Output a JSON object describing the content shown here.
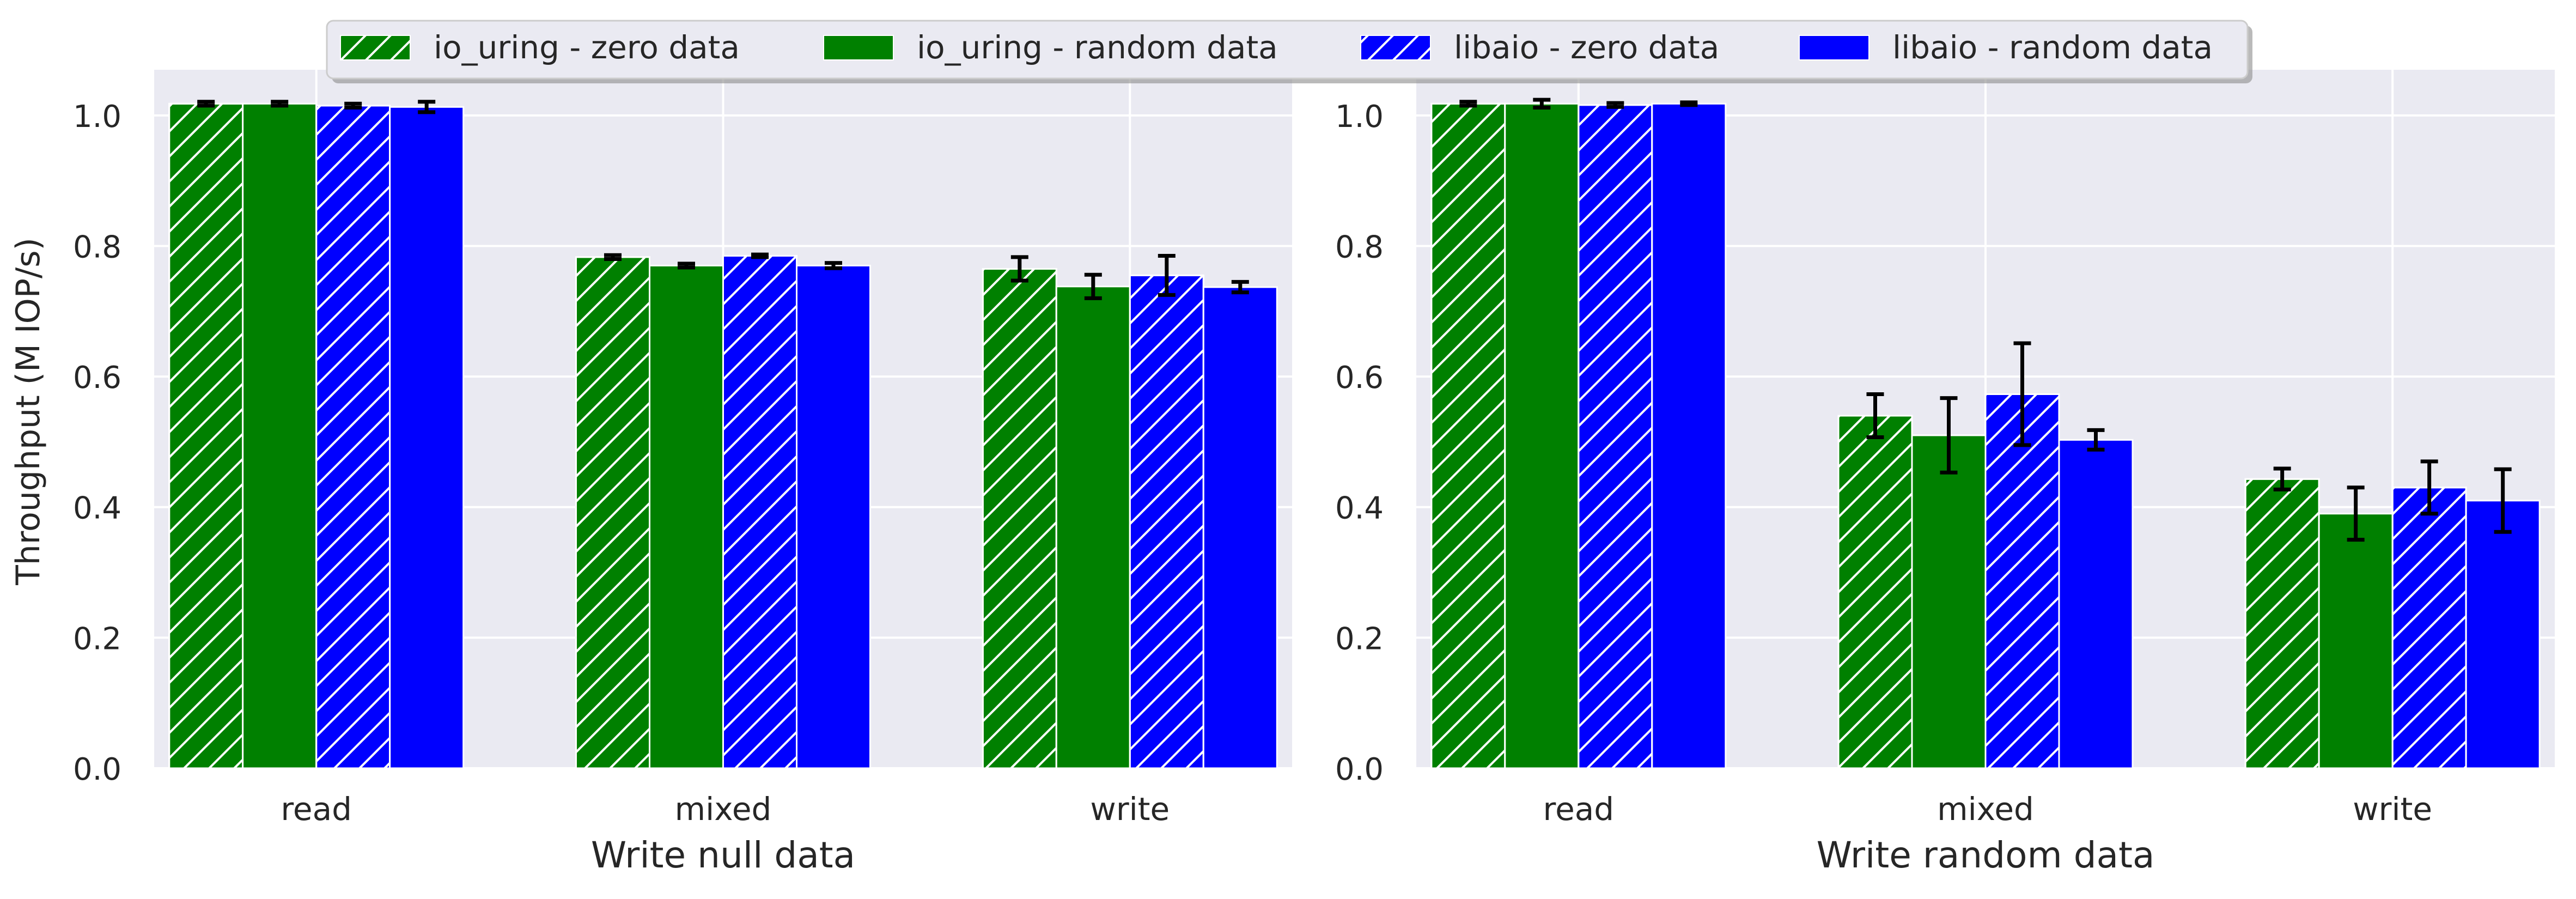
{
  "figure": {
    "ylabel": "Throughput (M IOP/s)"
  },
  "legend": {
    "placement": "top-center",
    "items": [
      {
        "label": "io_uring - zero data",
        "color": "#008000",
        "hatch": true
      },
      {
        "label": "io_uring - random data",
        "color": "#008000",
        "hatch": false
      },
      {
        "label": "libaio - zero data",
        "color": "#0000ff",
        "hatch": true
      },
      {
        "label": "libaio - random data",
        "color": "#0000ff",
        "hatch": false
      }
    ]
  },
  "chart_data": [
    {
      "type": "bar",
      "title": "",
      "xlabel": "Write null data",
      "ylabel": "Throughput (M IOP/s)",
      "ylim": [
        0,
        1.07
      ],
      "yticks": [
        "0.0",
        "0.2",
        "0.4",
        "0.6",
        "0.8",
        "1.0"
      ],
      "grid": true,
      "categories": [
        "read",
        "mixed",
        "write"
      ],
      "series": [
        {
          "name": "io_uring - zero data",
          "values": [
            1.018,
            0.783,
            0.765
          ],
          "errors": [
            0.003,
            0.003,
            0.018
          ]
        },
        {
          "name": "io_uring - random data",
          "values": [
            1.018,
            0.77,
            0.738
          ],
          "errors": [
            0.003,
            0.003,
            0.018
          ]
        },
        {
          "name": "libaio - zero data",
          "values": [
            1.015,
            0.785,
            0.755
          ],
          "errors": [
            0.003,
            0.002,
            0.03
          ]
        },
        {
          "name": "libaio - random data",
          "values": [
            1.013,
            0.77,
            0.737
          ],
          "errors": [
            0.008,
            0.004,
            0.008
          ]
        }
      ]
    },
    {
      "type": "bar",
      "title": "",
      "xlabel": "Write random data",
      "ylabel": "",
      "ylim": [
        0,
        1.07
      ],
      "yticks": [
        "0.0",
        "0.2",
        "0.4",
        "0.6",
        "0.8",
        "1.0"
      ],
      "grid": true,
      "categories": [
        "read",
        "mixed",
        "write"
      ],
      "series": [
        {
          "name": "io_uring - zero data",
          "values": [
            1.018,
            0.54,
            0.443
          ],
          "errors": [
            0.003,
            0.033,
            0.016
          ]
        },
        {
          "name": "io_uring - random data",
          "values": [
            1.018,
            0.51,
            0.39
          ],
          "errors": [
            0.006,
            0.057,
            0.04
          ]
        },
        {
          "name": "libaio - zero data",
          "values": [
            1.016,
            0.573,
            0.43
          ],
          "errors": [
            0.003,
            0.078,
            0.04
          ]
        },
        {
          "name": "libaio - random data",
          "values": [
            1.018,
            0.503,
            0.41
          ],
          "errors": [
            0.002,
            0.015,
            0.048
          ]
        }
      ]
    }
  ]
}
